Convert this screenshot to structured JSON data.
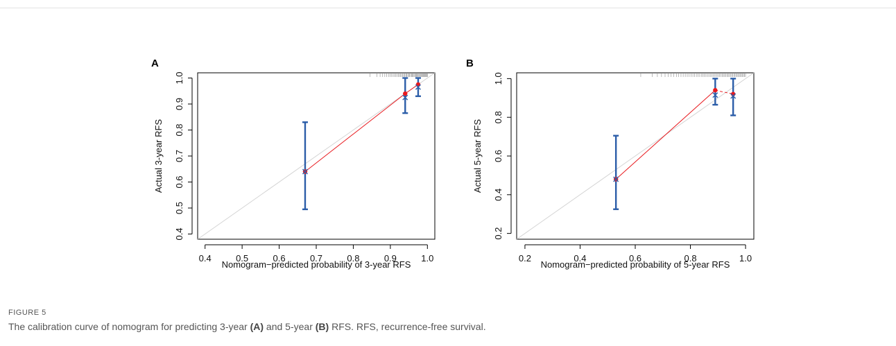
{
  "figure": {
    "label": "FIGURE 5",
    "caption_parts": {
      "before_a": "The calibration curve of nomogram for predicting 3-year ",
      "ref_a": "(A)",
      "between": " and 5-year ",
      "ref_b": "(B)",
      "after_b": " RFS. RFS, recurrence-free survival."
    }
  },
  "chart_data": [
    {
      "type": "line",
      "panel": "A",
      "title": "",
      "xlabel": "Nomogram−predicted probability of 3-year RFS",
      "ylabel": "Actual 3-year RFS",
      "xlim": [
        0.38,
        1.02
      ],
      "ylim": [
        0.38,
        1.02
      ],
      "xticks": [
        0.4,
        0.5,
        0.6,
        0.7,
        0.8,
        0.9,
        1.0
      ],
      "xtick_labels": [
        "0.4",
        "0.5",
        "0.6",
        "0.7",
        "0.8",
        "0.9",
        "1.0"
      ],
      "yticks": [
        0.4,
        0.5,
        0.6,
        0.7,
        0.8,
        0.9,
        1.0
      ],
      "ytick_labels": [
        "0.4",
        "0.5",
        "0.6",
        "0.7",
        "0.8",
        "0.9",
        "1.0"
      ],
      "reference_line": [
        [
          0.38,
          0.38
        ],
        [
          1.02,
          1.02
        ]
      ],
      "observed": {
        "x": [
          0.67,
          0.94,
          0.975
        ],
        "y": [
          0.64,
          0.94,
          0.975
        ],
        "line_style": "solid",
        "color": "#e8191e"
      },
      "bias_corrected": {
        "x": [
          0.67,
          0.94,
          0.975
        ],
        "y": [
          0.64,
          0.925,
          0.965
        ],
        "color": "#2b5da8"
      },
      "error_bars": [
        {
          "x": 0.67,
          "low": 0.495,
          "high": 0.83
        },
        {
          "x": 0.94,
          "low": 0.865,
          "high": 1.0
        },
        {
          "x": 0.975,
          "low": 0.93,
          "high": 1.0
        }
      ],
      "rug": {
        "start": 0.845,
        "end": 1.0,
        "count": 48
      },
      "grid": false,
      "legend": "none"
    },
    {
      "type": "line",
      "panel": "B",
      "title": "",
      "xlabel": "Nomogram−predicted probability of 5-year RFS",
      "ylabel": "Actual 5-year RFS",
      "xlim": [
        0.17,
        1.03
      ],
      "ylim": [
        0.17,
        1.03
      ],
      "xticks": [
        0.2,
        0.4,
        0.6,
        0.8,
        1.0
      ],
      "xtick_labels": [
        "0.2",
        "0.4",
        "0.6",
        "0.8",
        "1.0"
      ],
      "yticks": [
        0.2,
        0.4,
        0.6,
        0.8,
        1.0
      ],
      "ytick_labels": [
        "0.2",
        "0.4",
        "0.6",
        "0.8",
        "1.0"
      ],
      "reference_line": [
        [
          0.17,
          0.17
        ],
        [
          1.03,
          1.03
        ]
      ],
      "observed": {
        "x": [
          0.53,
          0.89,
          0.955
        ],
        "y": [
          0.48,
          0.94,
          0.92
        ],
        "line_style": "solid-then-dashed",
        "color": "#e8191e"
      },
      "bias_corrected": {
        "x": [
          0.53,
          0.89,
          0.955
        ],
        "y": [
          0.48,
          0.915,
          0.91
        ],
        "color": "#2b5da8"
      },
      "error_bars": [
        {
          "x": 0.53,
          "low": 0.325,
          "high": 0.705
        },
        {
          "x": 0.89,
          "low": 0.865,
          "high": 1.0
        },
        {
          "x": 0.955,
          "low": 0.81,
          "high": 1.0
        }
      ],
      "rug": {
        "start": 0.62,
        "end": 1.0,
        "count": 58
      },
      "grid": false,
      "legend": "none"
    }
  ]
}
